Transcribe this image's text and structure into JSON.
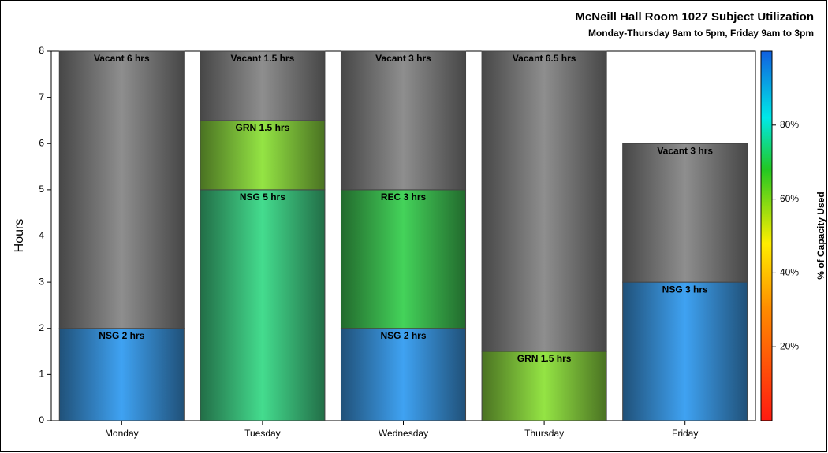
{
  "chart_data": {
    "type": "bar",
    "stacked": true,
    "title": "McNeill Hall Room 1027 Subject Utilization",
    "subtitle": "Monday-Thursday 9am to 5pm, Friday 9am to 3pm",
    "ylabel": "Hours",
    "categories": [
      "Monday",
      "Tuesday",
      "Wednesday",
      "Thursday",
      "Friday"
    ],
    "series": [
      {
        "name": "NSG",
        "values": [
          2,
          5,
          2,
          null,
          3
        ],
        "value_labels": [
          "NSG 2 hrs",
          "NSG 5 hrs",
          "NSG 2 hrs",
          null,
          "NSG 3 hrs"
        ],
        "colors": [
          "#3fa2f2",
          "#44dc8e",
          "#3fa2f2",
          null,
          "#3fa2f2"
        ]
      },
      {
        "name": "GRN",
        "values": [
          null,
          1.5,
          null,
          1.5,
          null
        ],
        "value_labels": [
          null,
          "GRN 1.5 hrs",
          null,
          "GRN 1.5 hrs",
          null
        ],
        "colors": [
          null,
          "#94e444",
          null,
          "#94e444",
          null
        ]
      },
      {
        "name": "REC",
        "values": [
          null,
          null,
          3,
          null,
          null
        ],
        "value_labels": [
          null,
          null,
          "REC 3 hrs",
          null,
          null
        ],
        "colors": [
          null,
          null,
          "#44d35a",
          null,
          null
        ]
      },
      {
        "name": "Vacant",
        "values": [
          6,
          1.5,
          3,
          6.5,
          3
        ],
        "value_labels": [
          "Vacant 6 hrs",
          "Vacant 1.5 hrs",
          "Vacant 3 hrs",
          "Vacant 6.5 hrs",
          "Vacant 3 hrs"
        ],
        "colors": [
          "#8e8e8e",
          "#8e8e8e",
          "#8e8e8e",
          "#8e8e8e",
          "#8e8e8e"
        ]
      }
    ],
    "ylim": [
      0,
      8
    ],
    "yticks": [
      0,
      1,
      2,
      3,
      4,
      5,
      6,
      7,
      8
    ],
    "colorbar_label": "% of Capacity Used",
    "clim": [
      0,
      100
    ],
    "cticks": [
      {
        "value": 20,
        "label": "20%"
      },
      {
        "value": 40,
        "label": "40%"
      },
      {
        "value": 60,
        "label": "60%"
      },
      {
        "value": 80,
        "label": "80%"
      }
    ]
  }
}
